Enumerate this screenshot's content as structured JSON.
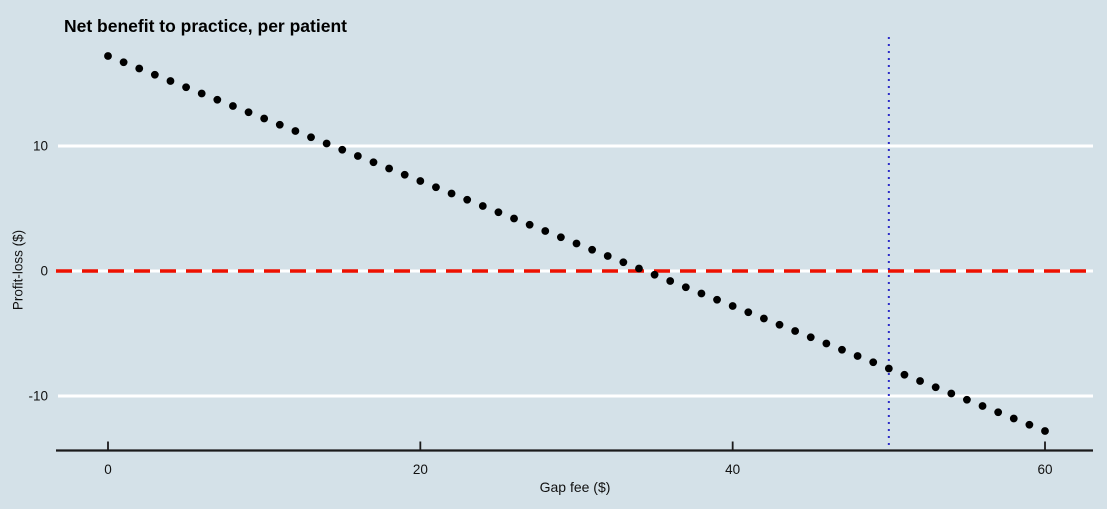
{
  "chart_data": {
    "type": "scatter",
    "title": "Net benefit to practice, per patient",
    "xlabel": "Gap fee ($)",
    "ylabel": "Profit-loss ($)",
    "xlim": [
      -3.3,
      63.1
    ],
    "ylim": [
      -14.3,
      18.9
    ],
    "x_ticks": [
      0,
      20,
      40,
      60
    ],
    "y_ticks": [
      10,
      0,
      -10
    ],
    "grid": true,
    "gridline_ys": [
      10,
      0,
      -10
    ],
    "legend": "none",
    "series": [
      {
        "name": "net-benefit-per-patient",
        "marker": "filled-circle",
        "color": "#000000",
        "x": [
          0,
          1,
          2,
          3,
          4,
          5,
          6,
          7,
          8,
          9,
          10,
          11,
          12,
          13,
          14,
          15,
          16,
          17,
          18,
          19,
          20,
          21,
          22,
          23,
          24,
          25,
          26,
          27,
          28,
          29,
          30,
          31,
          32,
          33,
          34,
          35,
          36,
          37,
          38,
          39,
          40,
          41,
          42,
          43,
          44,
          45,
          46,
          47,
          48,
          49,
          50,
          51,
          52,
          53,
          54,
          55,
          56,
          57,
          58,
          59,
          60
        ],
        "y": [
          17.2,
          16.7,
          16.2,
          15.7,
          15.2,
          14.7,
          14.2,
          13.7,
          13.2,
          12.7,
          12.2,
          11.7,
          11.2,
          10.7,
          10.2,
          9.7,
          9.2,
          8.7,
          8.2,
          7.7,
          7.2,
          6.7,
          6.2,
          5.7,
          5.2,
          4.7,
          4.2,
          3.7,
          3.2,
          2.7,
          2.2,
          1.7,
          1.2,
          0.7,
          0.2,
          -0.3,
          -0.8,
          -1.3,
          -1.8,
          -2.3,
          -2.8,
          -3.3,
          -3.8,
          -4.3,
          -4.8,
          -5.3,
          -5.8,
          -6.3,
          -6.8,
          -7.3,
          -7.8,
          -8.3,
          -8.8,
          -9.3,
          -9.8,
          -10.3,
          -10.8,
          -11.3,
          -11.8,
          -12.3,
          -12.8
        ]
      }
    ],
    "reference_lines": [
      {
        "name": "break-even-line",
        "orientation": "horizontal",
        "value": 0,
        "style": "dashed",
        "color": "#ee1100"
      },
      {
        "name": "gap-fee-50-line",
        "orientation": "vertical",
        "value": 50,
        "style": "dotted",
        "color": "#2b2bc8"
      }
    ],
    "colors": {
      "background": "#d4e1e8",
      "gridline": "#ffffff",
      "axis": "#1b1b1b",
      "marker": "#000000",
      "dashed_reference": "#ee1100",
      "dotted_reference": "#2b2bc8"
    }
  }
}
